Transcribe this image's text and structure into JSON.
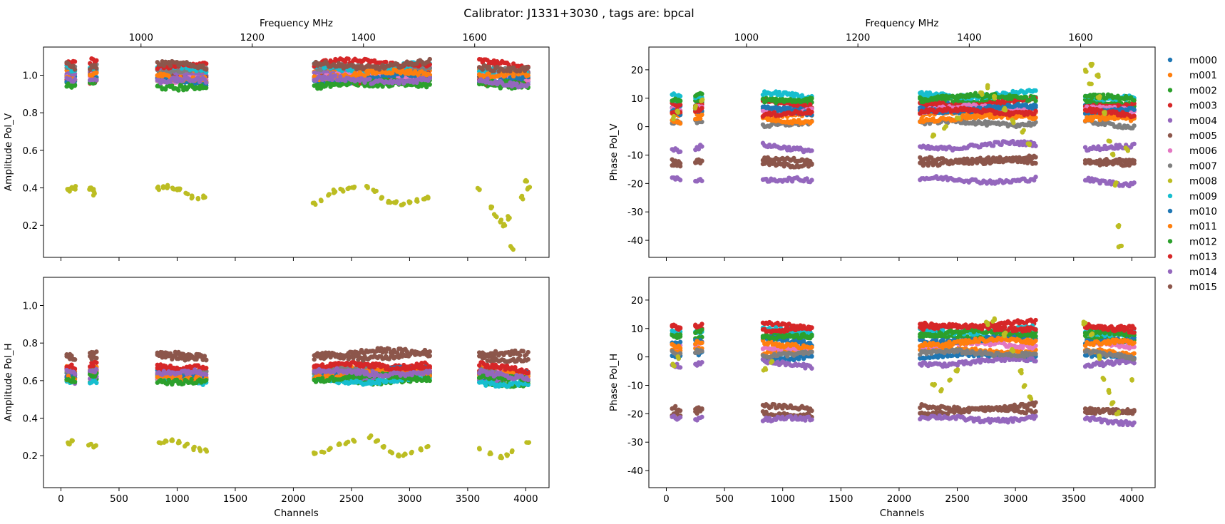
{
  "figure_title": "Calibrator: J1331+3030 , tags are: bpcal",
  "legend": {
    "placement": "right",
    "entries": [
      "m000",
      "m001",
      "m002",
      "m003",
      "m004",
      "m005",
      "m006",
      "m007",
      "m008",
      "m009",
      "m010",
      "m011",
      "m012",
      "m013",
      "m014",
      "m015"
    ],
    "colors": [
      "#1f77b4",
      "#ff7f0e",
      "#2ca02c",
      "#d62728",
      "#9467bd",
      "#8c564b",
      "#e377c2",
      "#7f7f7f",
      "#bcbd22",
      "#17becf",
      "#1f77b4",
      "#ff7f0e",
      "#2ca02c",
      "#d62728",
      "#9467bd",
      "#8c564b"
    ]
  },
  "chart_data": [
    {
      "type": "scatter",
      "xlabel": "",
      "top_xlabel": "Frequency MHz",
      "ylabel": "Amplitude Pol_V",
      "xlim": [
        -150,
        4200
      ],
      "ylim": [
        0.03,
        1.15
      ],
      "yticks": [
        0.2,
        0.4,
        0.6,
        0.8,
        1.0
      ],
      "xticks": [
        0,
        500,
        1000,
        1500,
        2000,
        2500,
        3000,
        3500,
        4000
      ],
      "xtick_labels_visible": false,
      "top_xticks": [
        1000,
        1200,
        1400,
        1600
      ],
      "channel_segments": [
        [
          50,
          120
        ],
        [
          250,
          310
        ],
        [
          830,
          1260
        ],
        [
          2180,
          3180
        ],
        [
          3600,
          4030
        ]
      ],
      "series_levels": [
        0.99,
        1.01,
        0.96,
        0.98,
        1.02,
        1.0,
        0.99,
        1.03,
        0.38,
        1.04,
        0.98,
        1.0,
        0.95,
        1.06,
        0.97,
        1.05
      ],
      "outlier_series": "m008",
      "outlier_points": [
        [
          60,
          0.39
        ],
        [
          80,
          0.395
        ],
        [
          100,
          0.4
        ],
        [
          120,
          0.4
        ],
        [
          250,
          0.4
        ],
        [
          270,
          0.39
        ],
        [
          290,
          0.37
        ],
        [
          830,
          0.4
        ],
        [
          880,
          0.4
        ],
        [
          920,
          0.405
        ],
        [
          960,
          0.4
        ],
        [
          1000,
          0.395
        ],
        [
          1020,
          0.39
        ],
        [
          1080,
          0.37
        ],
        [
          1130,
          0.35
        ],
        [
          1180,
          0.345
        ],
        [
          1240,
          0.35
        ],
        [
          2180,
          0.32
        ],
        [
          2240,
          0.33
        ],
        [
          2300,
          0.36
        ],
        [
          2360,
          0.38
        ],
        [
          2420,
          0.39
        ],
        [
          2480,
          0.4
        ],
        [
          2520,
          0.4
        ],
        [
          2640,
          0.4
        ],
        [
          2700,
          0.38
        ],
        [
          2760,
          0.35
        ],
        [
          2820,
          0.33
        ],
        [
          2880,
          0.32
        ],
        [
          2940,
          0.31
        ],
        [
          3000,
          0.32
        ],
        [
          3060,
          0.33
        ],
        [
          3120,
          0.34
        ],
        [
          3160,
          0.35
        ],
        [
          3600,
          0.39
        ],
        [
          3700,
          0.3
        ],
        [
          3740,
          0.25
        ],
        [
          3780,
          0.22
        ],
        [
          3820,
          0.2
        ],
        [
          3860,
          0.24
        ],
        [
          3880,
          0.08
        ],
        [
          3960,
          0.35
        ],
        [
          4000,
          0.44
        ],
        [
          4020,
          0.4
        ]
      ]
    },
    {
      "type": "scatter",
      "xlabel": "",
      "top_xlabel": "Frequency MHz",
      "ylabel": "Phase Pol_V",
      "xlim": [
        -150,
        4200
      ],
      "ylim": [
        -46,
        28
      ],
      "yticks": [
        -40,
        -30,
        -20,
        -10,
        0,
        10,
        20
      ],
      "xticks": [
        0,
        500,
        1000,
        1500,
        2000,
        2500,
        3000,
        3500,
        4000
      ],
      "xtick_labels_visible": false,
      "top_xticks": [
        1000,
        1200,
        1400,
        1600
      ],
      "channel_segments": [
        [
          50,
          120
        ],
        [
          250,
          310
        ],
        [
          830,
          1260
        ],
        [
          2180,
          3180
        ],
        [
          3600,
          4030
        ]
      ],
      "series_levels": [
        7,
        4,
        9,
        8,
        -7,
        -12.5,
        6,
        1,
        2,
        11,
        6,
        3,
        10,
        5,
        -19,
        -12
      ],
      "outlier_series": "m008",
      "outlier_points": [
        [
          60,
          3
        ],
        [
          100,
          5
        ],
        [
          250,
          7
        ],
        [
          300,
          9
        ],
        [
          2300,
          -3
        ],
        [
          2400,
          0
        ],
        [
          2500,
          3
        ],
        [
          2700,
          12
        ],
        [
          2760,
          14
        ],
        [
          2820,
          10
        ],
        [
          2900,
          6
        ],
        [
          2980,
          2
        ],
        [
          3060,
          -2
        ],
        [
          3120,
          -6
        ],
        [
          3600,
          20
        ],
        [
          3640,
          15
        ],
        [
          3660,
          22
        ],
        [
          3700,
          18
        ],
        [
          3720,
          10
        ],
        [
          3760,
          5
        ],
        [
          3800,
          -5
        ],
        [
          3840,
          -10
        ],
        [
          3860,
          -20
        ],
        [
          3880,
          -35
        ],
        [
          3900,
          -42
        ],
        [
          3960,
          -8
        ]
      ]
    },
    {
      "type": "scatter",
      "xlabel": "Channels",
      "top_xlabel": "",
      "ylabel": "Amplitude Pol_H",
      "xlim": [
        -150,
        4200
      ],
      "ylim": [
        0.03,
        1.15
      ],
      "yticks": [
        0.2,
        0.4,
        0.6,
        0.8,
        1.0
      ],
      "xticks": [
        0,
        500,
        1000,
        1500,
        2000,
        2500,
        3000,
        3500,
        4000
      ],
      "xtick_labels_visible": true,
      "top_xticks": [],
      "channel_segments": [
        [
          50,
          120
        ],
        [
          250,
          310
        ],
        [
          830,
          1260
        ],
        [
          2180,
          3180
        ],
        [
          3600,
          4030
        ]
      ],
      "series_levels": [
        0.64,
        0.65,
        0.6,
        0.66,
        0.62,
        0.74,
        0.63,
        0.64,
        0.26,
        0.6,
        0.64,
        0.63,
        0.61,
        0.67,
        0.64,
        0.73
      ],
      "outlier_series": "m008",
      "outlier_points": [
        [
          60,
          0.27
        ],
        [
          100,
          0.28
        ],
        [
          250,
          0.26
        ],
        [
          290,
          0.25
        ],
        [
          850,
          0.27
        ],
        [
          900,
          0.28
        ],
        [
          960,
          0.28
        ],
        [
          1020,
          0.27
        ],
        [
          1080,
          0.26
        ],
        [
          1140,
          0.24
        ],
        [
          1200,
          0.23
        ],
        [
          1250,
          0.23
        ],
        [
          2180,
          0.21
        ],
        [
          2250,
          0.22
        ],
        [
          2320,
          0.24
        ],
        [
          2400,
          0.26
        ],
        [
          2460,
          0.27
        ],
        [
          2520,
          0.28
        ],
        [
          2660,
          0.3
        ],
        [
          2720,
          0.28
        ],
        [
          2780,
          0.25
        ],
        [
          2840,
          0.22
        ],
        [
          2900,
          0.2
        ],
        [
          2960,
          0.21
        ],
        [
          3020,
          0.22
        ],
        [
          3100,
          0.23
        ],
        [
          3160,
          0.25
        ],
        [
          3600,
          0.24
        ],
        [
          3700,
          0.21
        ],
        [
          3780,
          0.19
        ],
        [
          3840,
          0.2
        ],
        [
          3880,
          0.22
        ],
        [
          4020,
          0.27
        ]
      ]
    },
    {
      "type": "scatter",
      "xlabel": "Channels",
      "top_xlabel": "",
      "ylabel": "Phase Pol_H",
      "xlim": [
        -150,
        4200
      ],
      "ylim": [
        -46,
        28
      ],
      "yticks": [
        -40,
        -30,
        -20,
        -10,
        0,
        10,
        20
      ],
      "xticks": [
        0,
        500,
        1000,
        1500,
        2000,
        2500,
        3000,
        3500,
        4000
      ],
      "xtick_labels_visible": true,
      "top_xticks": [],
      "channel_segments": [
        [
          50,
          120
        ],
        [
          250,
          310
        ],
        [
          830,
          1260
        ],
        [
          2180,
          3180
        ],
        [
          3600,
          4030
        ]
      ],
      "series_levels": [
        0,
        2,
        7,
        11,
        -2,
        -19.5,
        4,
        1,
        3,
        9,
        6,
        5,
        8,
        10,
        -22,
        -18
      ],
      "outlier_series": "m008",
      "outlier_points": [
        [
          60,
          -3
        ],
        [
          100,
          0
        ],
        [
          850,
          -4
        ],
        [
          900,
          -2
        ],
        [
          2300,
          -10
        ],
        [
          2360,
          -12
        ],
        [
          2440,
          -8
        ],
        [
          2500,
          -5
        ],
        [
          2760,
          12
        ],
        [
          2820,
          13
        ],
        [
          2900,
          8
        ],
        [
          2980,
          2
        ],
        [
          3040,
          -5
        ],
        [
          3080,
          -10
        ],
        [
          3120,
          -14
        ],
        [
          3600,
          12
        ],
        [
          3660,
          8
        ],
        [
          3720,
          0
        ],
        [
          3760,
          -8
        ],
        [
          3800,
          -12
        ],
        [
          3840,
          -16
        ],
        [
          3880,
          -20
        ],
        [
          4000,
          -8
        ]
      ]
    }
  ]
}
